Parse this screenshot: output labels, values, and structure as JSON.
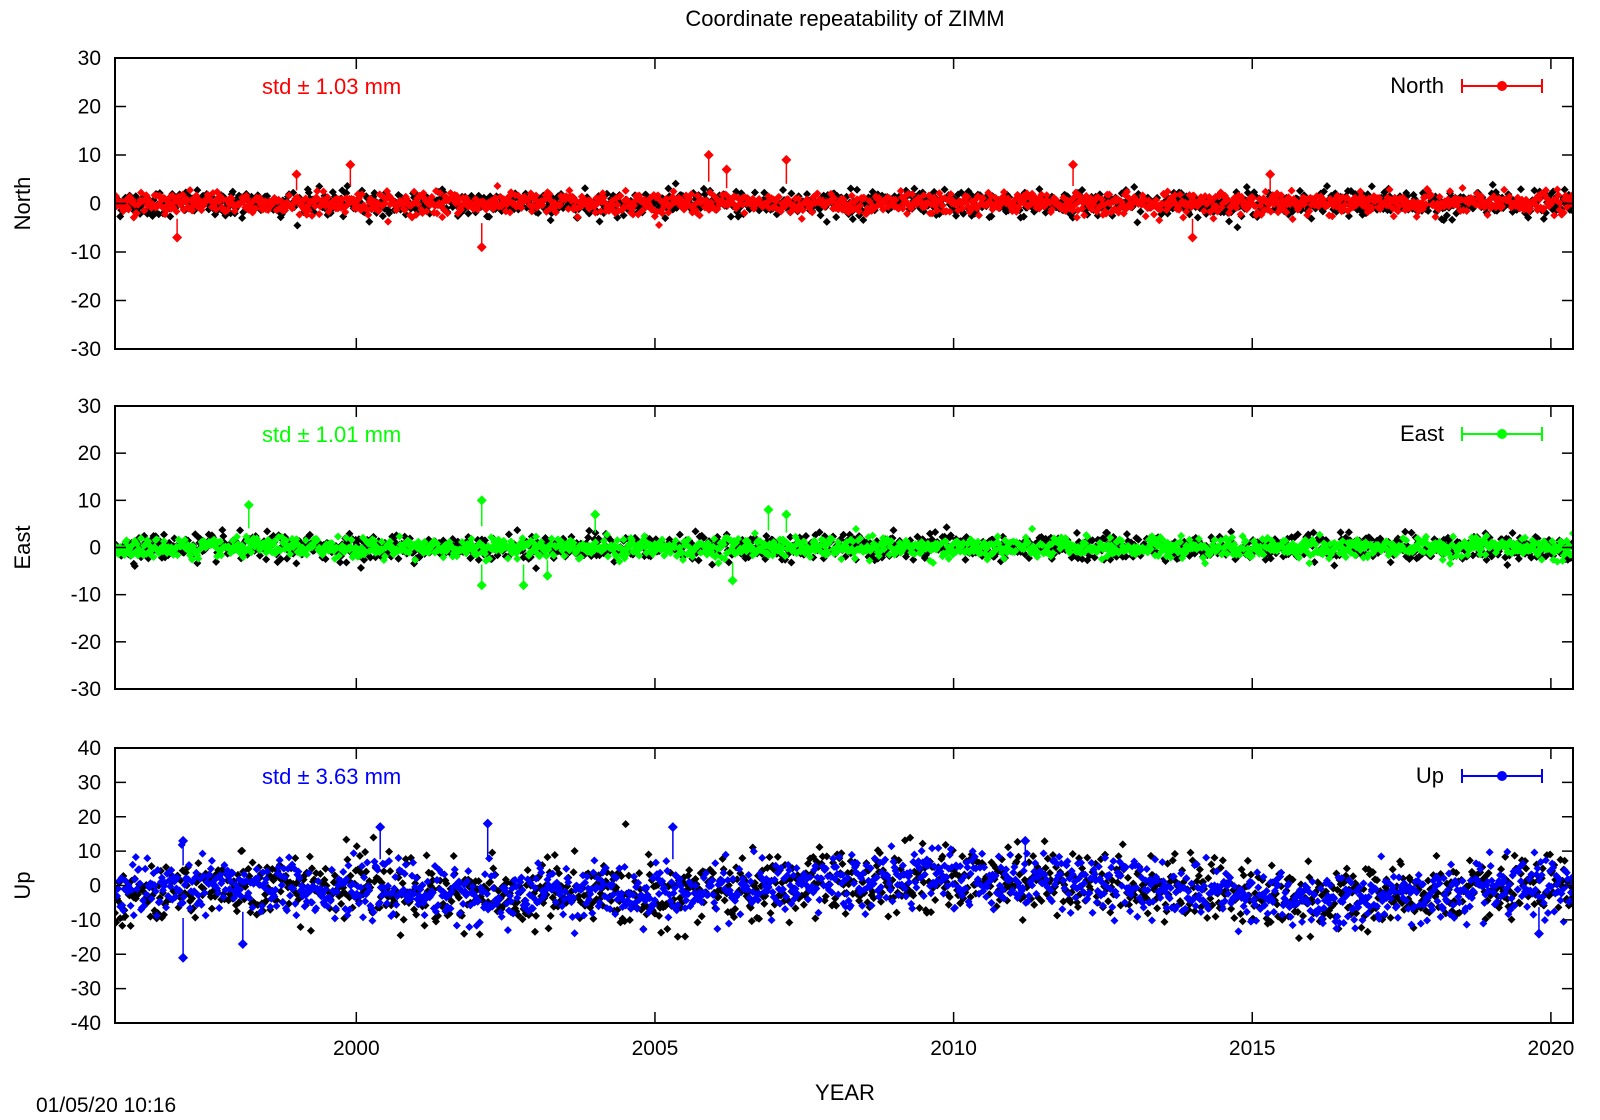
{
  "figure": {
    "title": "Coordinate repeatability of ZIMM",
    "xlabel": "YEAR",
    "timestamp": "01/05/20 10:16",
    "x_tick_labels": [
      "2000",
      "2005",
      "2010",
      "2015",
      "2020"
    ]
  },
  "chart_data": [
    {
      "type": "scatter",
      "panel": "north",
      "ylabel": "North",
      "series_label": "North",
      "std_label": "std ± 1.03 mm",
      "std_mm": 1.03,
      "color": "#ff0000",
      "background_color": "#000000",
      "xlim": [
        1995.96,
        2020.37
      ],
      "ylim": [
        -30,
        30
      ],
      "y_ticks": [
        -30,
        -20,
        -10,
        0,
        10,
        20,
        30
      ],
      "x_ticks": [
        2000,
        2005,
        2010,
        2015,
        2020
      ],
      "legend": "top-right",
      "outliers": [
        {
          "x": 1997.0,
          "y": -7
        },
        {
          "x": 1999.0,
          "y": 6
        },
        {
          "x": 1999.9,
          "y": 8
        },
        {
          "x": 2002.1,
          "y": -9
        },
        {
          "x": 2005.9,
          "y": 10
        },
        {
          "x": 2006.2,
          "y": 7
        },
        {
          "x": 2007.2,
          "y": 9
        },
        {
          "x": 2012.0,
          "y": 8
        },
        {
          "x": 2014.0,
          "y": -7
        },
        {
          "x": 2015.3,
          "y": 6
        }
      ]
    },
    {
      "type": "scatter",
      "panel": "east",
      "ylabel": "East",
      "series_label": "East",
      "std_label": "std ± 1.01 mm",
      "std_mm": 1.01,
      "color": "#00ff00",
      "background_color": "#000000",
      "xlim": [
        1995.96,
        2020.37
      ],
      "ylim": [
        -30,
        30
      ],
      "y_ticks": [
        -30,
        -20,
        -10,
        0,
        10,
        20,
        30
      ],
      "x_ticks": [
        2000,
        2005,
        2010,
        2015,
        2020
      ],
      "legend": "top-right",
      "outliers": [
        {
          "x": 1998.2,
          "y": 9
        },
        {
          "x": 2002.1,
          "y": 10
        },
        {
          "x": 2002.1,
          "y": -8
        },
        {
          "x": 2002.8,
          "y": -8
        },
        {
          "x": 2003.2,
          "y": -6
        },
        {
          "x": 2004.0,
          "y": 7
        },
        {
          "x": 2006.9,
          "y": 8
        },
        {
          "x": 2007.2,
          "y": 7
        },
        {
          "x": 2006.3,
          "y": -7
        }
      ]
    },
    {
      "type": "scatter",
      "panel": "up",
      "ylabel": "Up",
      "series_label": "Up",
      "std_label": "std ± 3.63 mm",
      "std_mm": 3.63,
      "color": "#0000ff",
      "background_color": "#000000",
      "xlim": [
        1995.96,
        2020.37
      ],
      "ylim": [
        -40,
        40
      ],
      "y_ticks": [
        -40,
        -30,
        -20,
        -10,
        0,
        10,
        20,
        30,
        40
      ],
      "x_ticks": [
        2000,
        2005,
        2010,
        2015,
        2020
      ],
      "legend": "top-right",
      "outliers": [
        {
          "x": 1997.1,
          "y": -21
        },
        {
          "x": 1997.1,
          "y": 13
        },
        {
          "x": 1998.1,
          "y": -17
        },
        {
          "x": 2000.4,
          "y": 17
        },
        {
          "x": 2002.2,
          "y": 18
        },
        {
          "x": 2005.3,
          "y": 17
        },
        {
          "x": 2019.8,
          "y": -14
        },
        {
          "x": 2011.2,
          "y": 13
        }
      ]
    }
  ]
}
